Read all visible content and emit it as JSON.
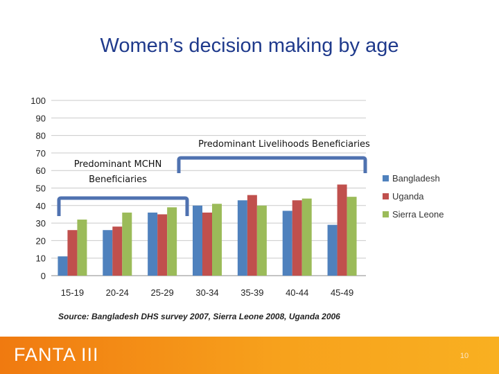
{
  "slide": {
    "title": "Women’s decision making by age",
    "brand": "FANTA III",
    "page_number": "10"
  },
  "chart_data": {
    "type": "bar",
    "categories": [
      "15-19",
      "20-24",
      "25-29",
      "30-34",
      "35-39",
      "40-44",
      "45-49"
    ],
    "series": [
      {
        "name": "Bangladesh",
        "color": "#4f81bd",
        "values": [
          11,
          26,
          36,
          40,
          43,
          37,
          29
        ]
      },
      {
        "name": "Uganda",
        "color": "#c0504d",
        "values": [
          26,
          28,
          35,
          36,
          46,
          43,
          52
        ]
      },
      {
        "name": "Sierra Leone",
        "color": "#9bbb59",
        "values": [
          32,
          36,
          39,
          41,
          40,
          44,
          45
        ]
      }
    ],
    "ylim": [
      0,
      100
    ],
    "yticks": [
      "0",
      "10",
      "20",
      "30",
      "40",
      "50",
      "60",
      "70",
      "80",
      "90",
      "100"
    ],
    "grid": true,
    "legend": "right",
    "annotations": {
      "mchn": [
        "Predominant MCHN",
        "Beneficiaries"
      ],
      "livelihoods": "Predominant Livelihoods Beneficiaries"
    },
    "source": "Source: Bangladesh DHS survey 2007, Sierra Leone 2008, Uganda 2006"
  }
}
